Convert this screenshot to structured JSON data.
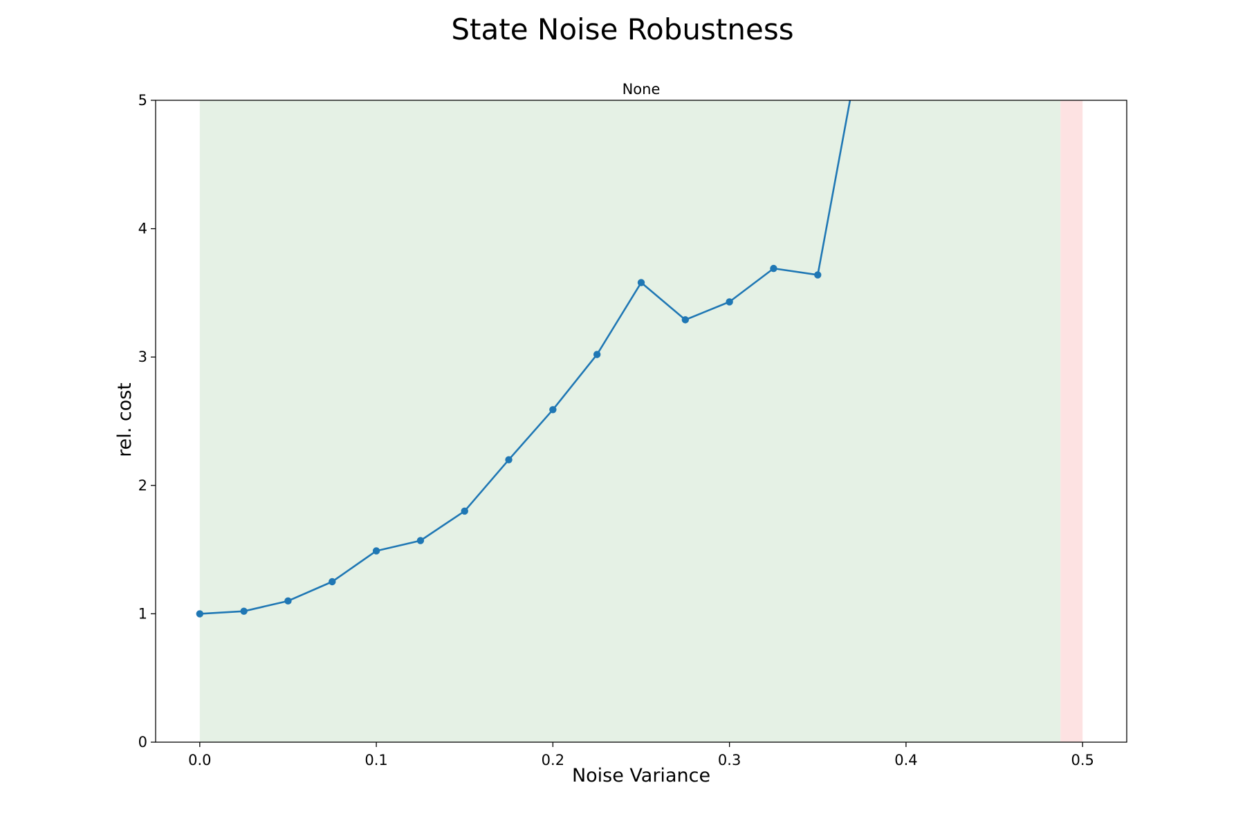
{
  "figure": {
    "suptitle": "State Noise Robustness"
  },
  "chart_data": {
    "type": "line",
    "title": "None",
    "xlabel": "Noise Variance",
    "ylabel": "rel. cost",
    "xlim": [
      -0.025,
      0.525
    ],
    "ylim": [
      0,
      5
    ],
    "xticks": [
      0.0,
      0.1,
      0.2,
      0.3,
      0.4,
      0.5
    ],
    "xtick_labels": [
      "0.0",
      "0.1",
      "0.2",
      "0.3",
      "0.4",
      "0.5"
    ],
    "yticks": [
      0,
      1,
      2,
      3,
      4,
      5
    ],
    "ytick_labels": [
      "0",
      "1",
      "2",
      "3",
      "4",
      "5"
    ],
    "grid": false,
    "legend": "none",
    "shaded_regions": [
      {
        "x0": 0.0,
        "x1": 0.4875,
        "color": "#e5f1e5"
      },
      {
        "x0": 0.4875,
        "x1": 0.5,
        "color": "#fde2e2"
      }
    ],
    "series": [
      {
        "color": "#1f77b4",
        "marker": "circle",
        "x": [
          0.0,
          0.025,
          0.05,
          0.075,
          0.1,
          0.125,
          0.15,
          0.175,
          0.2,
          0.225,
          0.25,
          0.275,
          0.3,
          0.325,
          0.35,
          0.375
        ],
        "y": [
          1.0,
          1.02,
          1.1,
          1.25,
          1.49,
          1.57,
          1.8,
          2.2,
          2.59,
          3.02,
          3.58,
          3.29,
          3.43,
          3.69,
          3.64,
          5.5
        ]
      }
    ]
  }
}
